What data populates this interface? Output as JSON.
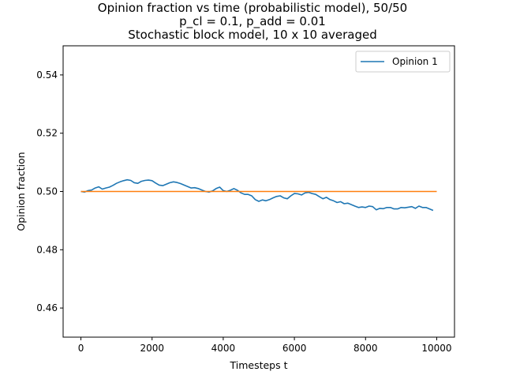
{
  "chart_data": {
    "type": "line",
    "title_lines": [
      "Opinion fraction vs time (probabilistic model), 50/50",
      "p_cl = 0.1, p_add = 0.01",
      "Stochastic block model, 10 x 10 averaged"
    ],
    "xlabel": "Timesteps t",
    "ylabel": "Opinion fraction",
    "xlim": [
      -500,
      10500
    ],
    "ylim": [
      0.45,
      0.55
    ],
    "xticks": [
      0,
      2000,
      4000,
      6000,
      8000,
      10000
    ],
    "yticks": [
      0.46,
      0.48,
      0.5,
      0.52,
      0.54
    ],
    "ytick_labels": [
      "0.46",
      "0.48",
      "0.50",
      "0.52",
      "0.54"
    ],
    "legend_position": "top-right",
    "series": [
      {
        "name": "Opinion 1",
        "color": "#1f77b4",
        "x": [
          0,
          100,
          200,
          300,
          400,
          500,
          600,
          700,
          800,
          900,
          1000,
          1100,
          1200,
          1300,
          1400,
          1500,
          1600,
          1700,
          1800,
          1900,
          2000,
          2100,
          2200,
          2300,
          2400,
          2500,
          2600,
          2700,
          2800,
          2900,
          3000,
          3100,
          3200,
          3300,
          3400,
          3500,
          3600,
          3700,
          3800,
          3900,
          4000,
          4100,
          4200,
          4300,
          4400,
          4500,
          4600,
          4700,
          4800,
          4900,
          5000,
          5100,
          5200,
          5300,
          5400,
          5500,
          5600,
          5700,
          5800,
          5900,
          6000,
          6100,
          6200,
          6300,
          6400,
          6500,
          6600,
          6700,
          6800,
          6900,
          7000,
          7100,
          7200,
          7300,
          7400,
          7500,
          7600,
          7700,
          7800,
          7900,
          8000,
          8100,
          8200,
          8300,
          8400,
          8500,
          8600,
          8700,
          8800,
          8900,
          9000,
          9100,
          9200,
          9300,
          9400,
          9500,
          9600,
          9700,
          9800,
          9900
        ],
        "values": [
          0.5,
          0.4998,
          0.5003,
          0.5005,
          0.5012,
          0.5016,
          0.5008,
          0.5012,
          0.5015,
          0.5021,
          0.5028,
          0.5033,
          0.5037,
          0.504,
          0.5038,
          0.503,
          0.5028,
          0.5035,
          0.5038,
          0.5039,
          0.5037,
          0.5029,
          0.5022,
          0.502,
          0.5025,
          0.503,
          0.5033,
          0.5031,
          0.5027,
          0.5022,
          0.5017,
          0.5012,
          0.5013,
          0.501,
          0.5005,
          0.5,
          0.4998,
          0.5002,
          0.501,
          0.5015,
          0.5003,
          0.5,
          0.5004,
          0.501,
          0.5004,
          0.4995,
          0.499,
          0.499,
          0.4985,
          0.4972,
          0.4966,
          0.4971,
          0.4968,
          0.4972,
          0.4978,
          0.4983,
          0.4985,
          0.4978,
          0.4975,
          0.4985,
          0.4993,
          0.4992,
          0.4988,
          0.4995,
          0.4997,
          0.4993,
          0.499,
          0.4982,
          0.4975,
          0.498,
          0.4972,
          0.4968,
          0.4962,
          0.4965,
          0.4958,
          0.496,
          0.4955,
          0.495,
          0.4945,
          0.4947,
          0.4945,
          0.495,
          0.4948,
          0.4937,
          0.4942,
          0.4941,
          0.4945,
          0.4945,
          0.494,
          0.494,
          0.4945,
          0.4944,
          0.4946,
          0.4948,
          0.4942,
          0.495,
          0.4945,
          0.4945,
          0.494,
          0.4935
        ]
      },
      {
        "name": "",
        "color": "#ff7f0e",
        "x": [
          0,
          10000
        ],
        "values": [
          0.5,
          0.5
        ]
      }
    ]
  }
}
